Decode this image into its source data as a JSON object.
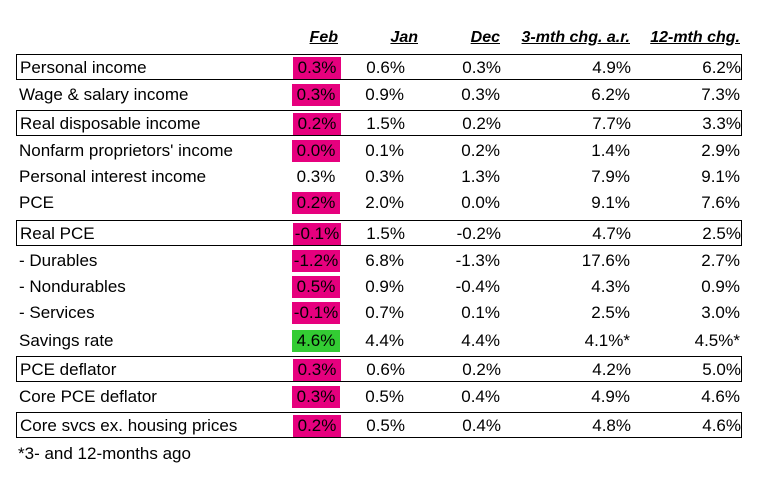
{
  "colors": {
    "highlight_pink": "#e6007e",
    "highlight_green": "#33cc33",
    "text": "#000000",
    "border": "#000000"
  },
  "headers": {
    "feb": "Feb",
    "jan": "Jan",
    "dec": "Dec",
    "chg3": "3-mth chg. a.r.",
    "chg12": "12-mth chg."
  },
  "rows": [
    {
      "label": "Personal income",
      "feb": "0.3%",
      "jan": "0.6%",
      "dec": "0.3%",
      "chg3": "4.9%",
      "chg12": "6.2%",
      "highlight": "pink",
      "boxed": true
    },
    {
      "label": "Wage & salary income",
      "feb": "0.3%",
      "jan": "0.9%",
      "dec": "0.3%",
      "chg3": "6.2%",
      "chg12": "7.3%",
      "highlight": "pink",
      "boxed": false
    },
    {
      "label": "Real disposable income",
      "feb": "0.2%",
      "jan": "1.5%",
      "dec": "0.2%",
      "chg3": "7.7%",
      "chg12": "3.3%",
      "highlight": "pink",
      "boxed": true
    },
    {
      "label": "Nonfarm proprietors' income",
      "feb": "0.0%",
      "jan": "0.1%",
      "dec": "0.2%",
      "chg3": "1.4%",
      "chg12": "2.9%",
      "highlight": "pink",
      "boxed": false
    },
    {
      "label": "Personal interest income",
      "feb": "0.3%",
      "jan": "0.3%",
      "dec": "1.3%",
      "chg3": "7.9%",
      "chg12": "9.1%",
      "highlight": "none",
      "boxed": false
    },
    {
      "label": "PCE",
      "feb": "0.2%",
      "jan": "2.0%",
      "dec": "0.0%",
      "chg3": "9.1%",
      "chg12": "7.6%",
      "highlight": "pink",
      "boxed": false
    },
    {
      "label": "Real PCE",
      "feb": "-0.1%",
      "jan": "1.5%",
      "dec": "-0.2%",
      "chg3": "4.7%",
      "chg12": "2.5%",
      "highlight": "pink",
      "boxed": true
    },
    {
      "label": "- Durables",
      "feb": "-1.2%",
      "jan": "6.8%",
      "dec": "-1.3%",
      "chg3": "17.6%",
      "chg12": "2.7%",
      "highlight": "pink",
      "boxed": false
    },
    {
      "label": "- Nondurables",
      "feb": "0.5%",
      "jan": "0.9%",
      "dec": "-0.4%",
      "chg3": "4.3%",
      "chg12": "0.9%",
      "highlight": "pink",
      "boxed": false
    },
    {
      "label": "- Services",
      "feb": "-0.1%",
      "jan": "0.7%",
      "dec": "0.1%",
      "chg3": "2.5%",
      "chg12": "3.0%",
      "highlight": "pink",
      "boxed": false
    },
    {
      "label": "Savings rate",
      "feb": "4.6%",
      "jan": "4.4%",
      "dec": "4.4%",
      "chg3": "4.1%*",
      "chg12": "4.5%*",
      "highlight": "green",
      "boxed": false
    },
    {
      "label": "PCE deflator",
      "feb": "0.3%",
      "jan": "0.6%",
      "dec": "0.2%",
      "chg3": "4.2%",
      "chg12": "5.0%",
      "highlight": "pink",
      "boxed": true
    },
    {
      "label": "Core PCE deflator",
      "feb": "0.3%",
      "jan": "0.5%",
      "dec": "0.4%",
      "chg3": "4.9%",
      "chg12": "4.6%",
      "highlight": "pink",
      "boxed": false
    },
    {
      "label": "Core svcs ex. housing prices",
      "feb": "0.2%",
      "jan": "0.5%",
      "dec": "0.4%",
      "chg3": "4.8%",
      "chg12": "4.6%",
      "highlight": "pink",
      "boxed": true
    }
  ],
  "footnote": "*3- and 12-months ago"
}
